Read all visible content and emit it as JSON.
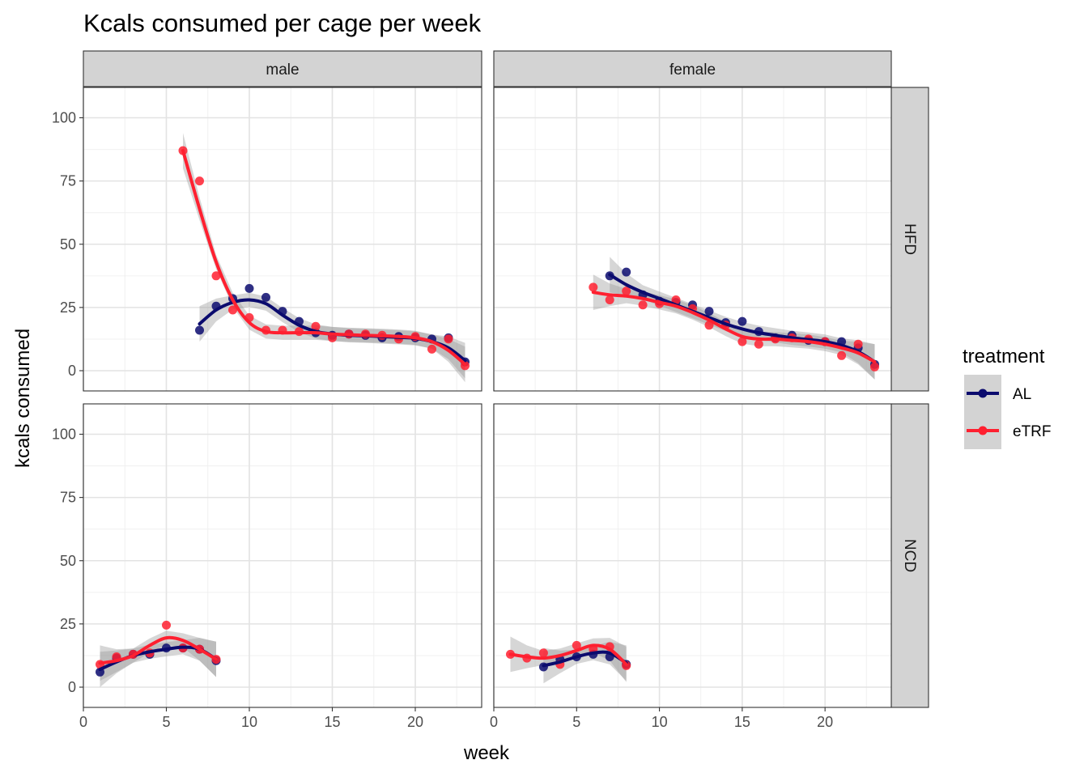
{
  "chart_data": {
    "type": "scatter",
    "title": "Kcals consumed per cage per week",
    "xlabel": "week",
    "ylabel": "kcals consumed",
    "xlim": [
      0,
      24
    ],
    "ylim": [
      -8,
      112
    ],
    "x_ticks": [
      0,
      5,
      10,
      15,
      20
    ],
    "y_ticks": [
      0,
      25,
      50,
      75,
      100
    ],
    "facet_columns": [
      "male",
      "female"
    ],
    "facet_rows": [
      "HFD",
      "NCD"
    ],
    "grid": true,
    "smooth": "loess with confidence band",
    "legend": {
      "title": "treatment",
      "position": "right",
      "entries": [
        {
          "name": "AL",
          "color": "#0b0b6e"
        },
        {
          "name": "eTRF",
          "color": "#ff2030"
        }
      ]
    },
    "panels": [
      {
        "sex": "male",
        "diet": "HFD",
        "series": [
          {
            "name": "AL",
            "points": [
              [
                7,
                16
              ],
              [
                8,
                25.5
              ],
              [
                9,
                28.5
              ],
              [
                10,
                32.5
              ],
              [
                11,
                29
              ],
              [
                12,
                23.5
              ],
              [
                13,
                19.5
              ],
              [
                14,
                15
              ],
              [
                15,
                14
              ],
              [
                16,
                14.5
              ],
              [
                17,
                14
              ],
              [
                18,
                13
              ],
              [
                19,
                13.5
              ],
              [
                20,
                13
              ],
              [
                21,
                12.5
              ],
              [
                22,
                13
              ],
              [
                23,
                3.5
              ]
            ],
            "fit": [
              [
                7,
                18.5
              ],
              [
                8,
                24
              ],
              [
                9,
                27
              ],
              [
                10,
                28
              ],
              [
                11,
                26.5
              ],
              [
                12,
                22
              ],
              [
                13,
                18
              ],
              [
                14,
                15.5
              ],
              [
                15,
                14.5
              ],
              [
                16,
                14
              ],
              [
                17,
                13.8
              ],
              [
                18,
                13.5
              ],
              [
                19,
                13.2
              ],
              [
                20,
                12.8
              ],
              [
                21,
                11.5
              ],
              [
                22,
                9
              ],
              [
                23,
                4
              ]
            ]
          },
          {
            "name": "eTRF",
            "points": [
              [
                6,
                87
              ],
              [
                7,
                75
              ],
              [
                8,
                37.5
              ],
              [
                9,
                24
              ],
              [
                10,
                21
              ],
              [
                11,
                16
              ],
              [
                12,
                16
              ],
              [
                13,
                15.5
              ],
              [
                14,
                17.5
              ],
              [
                15,
                13
              ],
              [
                16,
                14.5
              ],
              [
                17,
                14.5
              ],
              [
                18,
                14
              ],
              [
                19,
                12.5
              ],
              [
                20,
                13.5
              ],
              [
                21,
                8.5
              ],
              [
                22,
                12.5
              ],
              [
                23,
                2
              ]
            ],
            "fit": [
              [
                6,
                87
              ],
              [
                7,
                64
              ],
              [
                8,
                43
              ],
              [
                9,
                28
              ],
              [
                10,
                19
              ],
              [
                11,
                15.5
              ],
              [
                12,
                15
              ],
              [
                13,
                15
              ],
              [
                14,
                15
              ],
              [
                15,
                14.5
              ],
              [
                16,
                14.2
              ],
              [
                17,
                14
              ],
              [
                18,
                13.8
              ],
              [
                19,
                13.5
              ],
              [
                20,
                13
              ],
              [
                21,
                11.5
              ],
              [
                22,
                8
              ],
              [
                23,
                2.5
              ]
            ]
          }
        ]
      },
      {
        "sex": "female",
        "diet": "HFD",
        "series": [
          {
            "name": "AL",
            "points": [
              [
                7,
                37.5
              ],
              [
                8,
                39
              ],
              [
                9,
                30
              ],
              [
                10,
                27.5
              ],
              [
                11,
                27
              ],
              [
                12,
                26
              ],
              [
                13,
                23.5
              ],
              [
                14,
                19
              ],
              [
                15,
                19.5
              ],
              [
                16,
                15.5
              ],
              [
                17,
                13
              ],
              [
                18,
                14
              ],
              [
                19,
                12
              ],
              [
                20,
                11.5
              ],
              [
                21,
                11.5
              ],
              [
                22,
                9
              ],
              [
                23,
                2.5
              ]
            ],
            "fit": [
              [
                7,
                38
              ],
              [
                8,
                34
              ],
              [
                9,
                31
              ],
              [
                10,
                28.5
              ],
              [
                11,
                26
              ],
              [
                12,
                23.5
              ],
              [
                13,
                21
              ],
              [
                14,
                18.5
              ],
              [
                15,
                16.5
              ],
              [
                16,
                15
              ],
              [
                17,
                14
              ],
              [
                18,
                13
              ],
              [
                19,
                12.3
              ],
              [
                20,
                11.5
              ],
              [
                21,
                10
              ],
              [
                22,
                7.5
              ],
              [
                23,
                3.5
              ]
            ]
          },
          {
            "name": "eTRF",
            "points": [
              [
                6,
                33
              ],
              [
                7,
                28
              ],
              [
                8,
                31.5
              ],
              [
                9,
                26
              ],
              [
                10,
                26.5
              ],
              [
                11,
                28
              ],
              [
                12,
                24.5
              ],
              [
                13,
                18
              ],
              [
                14,
                18
              ],
              [
                15,
                11.5
              ],
              [
                16,
                10.5
              ],
              [
                17,
                12.5
              ],
              [
                18,
                13
              ],
              [
                19,
                12.5
              ],
              [
                20,
                11.5
              ],
              [
                21,
                6
              ],
              [
                22,
                10.5
              ],
              [
                23,
                1.5
              ]
            ],
            "fit": [
              [
                6,
                31
              ],
              [
                7,
                30
              ],
              [
                8,
                29.5
              ],
              [
                9,
                28.5
              ],
              [
                10,
                27
              ],
              [
                11,
                25.5
              ],
              [
                12,
                23
              ],
              [
                13,
                20
              ],
              [
                14,
                16.5
              ],
              [
                15,
                13.5
              ],
              [
                16,
                12.5
              ],
              [
                17,
                12.5
              ],
              [
                18,
                12
              ],
              [
                19,
                11.5
              ],
              [
                20,
                10.5
              ],
              [
                21,
                9
              ],
              [
                22,
                7
              ],
              [
                23,
                3.5
              ]
            ]
          }
        ]
      },
      {
        "sex": "male",
        "diet": "NCD",
        "series": [
          {
            "name": "AL",
            "points": [
              [
                1,
                6
              ],
              [
                2,
                11.5
              ],
              [
                3,
                13
              ],
              [
                4,
                13
              ],
              [
                5,
                15.5
              ],
              [
                6,
                15.5
              ],
              [
                7,
                15
              ],
              [
                8,
                10.5
              ]
            ],
            "fit": [
              [
                1,
                7
              ],
              [
                2,
                10
              ],
              [
                3,
                12.5
              ],
              [
                4,
                14
              ],
              [
                5,
                15
              ],
              [
                6,
                15.8
              ],
              [
                7,
                15
              ],
              [
                8,
                11
              ]
            ]
          },
          {
            "name": "eTRF",
            "points": [
              [
                1,
                9
              ],
              [
                2,
                12
              ],
              [
                3,
                13
              ],
              [
                4,
                13.5
              ],
              [
                5,
                24.5
              ],
              [
                6,
                15.5
              ],
              [
                7,
                15
              ],
              [
                8,
                11
              ]
            ],
            "fit": [
              [
                1,
                9.5
              ],
              [
                2,
                10.5
              ],
              [
                3,
                12.5
              ],
              [
                4,
                16.5
              ],
              [
                5,
                19.5
              ],
              [
                6,
                18.5
              ],
              [
                7,
                15
              ],
              [
                8,
                11
              ]
            ]
          }
        ]
      },
      {
        "sex": "female",
        "diet": "NCD",
        "series": [
          {
            "name": "AL",
            "points": [
              [
                3,
                8
              ],
              [
                4,
                11
              ],
              [
                5,
                12
              ],
              [
                6,
                13
              ],
              [
                7,
                12
              ],
              [
                8,
                9
              ]
            ],
            "fit": [
              [
                3,
                8.5
              ],
              [
                4,
                10
              ],
              [
                5,
                12
              ],
              [
                6,
                13.5
              ],
              [
                7,
                13.5
              ],
              [
                8,
                9.5
              ]
            ]
          },
          {
            "name": "eTRF",
            "points": [
              [
                1,
                13
              ],
              [
                2,
                11.5
              ],
              [
                3,
                13.5
              ],
              [
                4,
                9
              ],
              [
                5,
                16.5
              ],
              [
                6,
                15
              ],
              [
                7,
                16
              ],
              [
                8,
                8.5
              ]
            ],
            "fit": [
              [
                1,
                13
              ],
              [
                2,
                12
              ],
              [
                3,
                11.5
              ],
              [
                4,
                12.5
              ],
              [
                5,
                14.5
              ],
              [
                6,
                16.5
              ],
              [
                7,
                15
              ],
              [
                8,
                9
              ]
            ]
          }
        ]
      }
    ]
  }
}
